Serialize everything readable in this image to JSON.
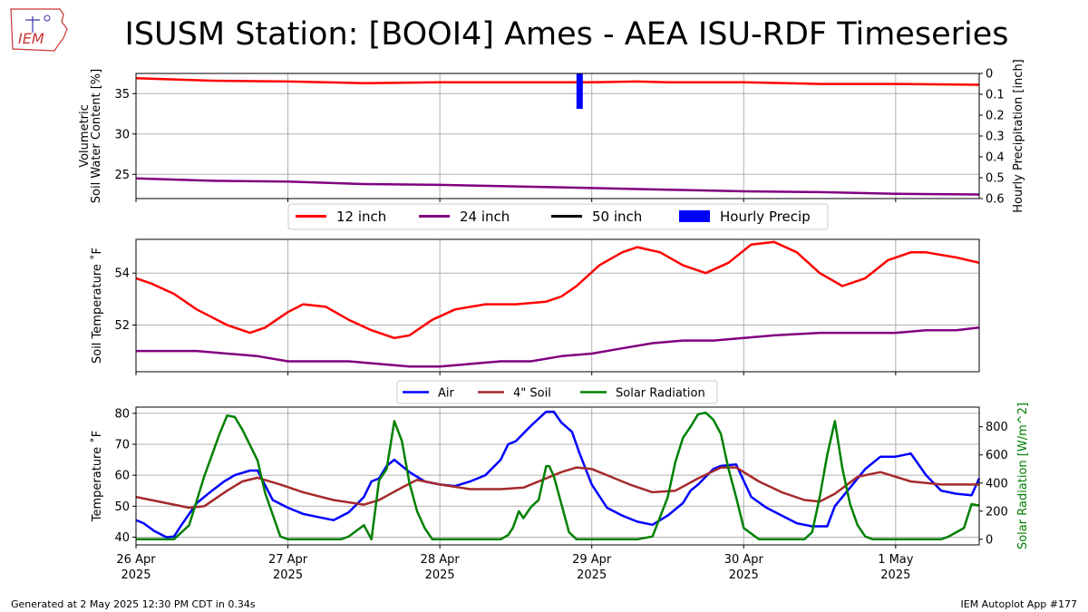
{
  "title": "ISUSM Station: [BOOI4] Ames - AEA ISU-RDF Timeseries",
  "logo_text": "IEM",
  "footer_left": "Generated at 2 May 2025 12:30 PM CDT in 0.34s",
  "footer_right": "IEM Autoplot App #177",
  "colors": {
    "red": "#ff0000",
    "purple": "#800080",
    "black": "#000000",
    "blue": "#0000ff",
    "brown": "#a52a2a",
    "green": "#008000",
    "grid": "#b0b0b0"
  },
  "x_ticks": [
    {
      "day": 0,
      "l1": "26 Apr",
      "l2": "2025"
    },
    {
      "day": 1,
      "l1": "27 Apr",
      "l2": "2025"
    },
    {
      "day": 2,
      "l1": "28 Apr",
      "l2": "2025"
    },
    {
      "day": 3,
      "l1": "29 Apr",
      "l2": "2025"
    },
    {
      "day": 4,
      "l1": "30 Apr",
      "l2": "2025"
    },
    {
      "day": 5,
      "l1": "1 May",
      "l2": "2025"
    }
  ],
  "x_range_days": [
    0,
    5.55
  ],
  "chart_data": [
    {
      "type": "line",
      "id": "soil_moisture",
      "ylabel": "Volumetric\nSoil Water Content [%]",
      "ylim": [
        22,
        37.5
      ],
      "yticks": [
        25,
        30,
        35
      ],
      "y2label": "Hourly Precipitation [inch]",
      "y2lim": [
        0,
        0.6
      ],
      "y2ticks": [
        0,
        0.1,
        0.2,
        0.3,
        0.4,
        0.5,
        0.6
      ],
      "y2inverted": true,
      "grid": true,
      "legend": {
        "placement": "below",
        "entries": [
          {
            "label": "12 inch",
            "color": "#ff0000",
            "kind": "line"
          },
          {
            "label": "24 inch",
            "color": "#800080",
            "kind": "line"
          },
          {
            "label": "50 inch",
            "color": "#000000",
            "kind": "line"
          },
          {
            "label": "Hourly Precip",
            "color": "#0000ff",
            "kind": "box"
          }
        ]
      },
      "series": [
        {
          "name": "12 inch",
          "color": "#ff0000",
          "x": [
            0,
            0.5,
            1.0,
            1.5,
            2.0,
            2.5,
            3.0,
            3.3,
            3.5,
            4.0,
            4.5,
            5.0,
            5.55
          ],
          "y": [
            36.9,
            36.6,
            36.5,
            36.3,
            36.4,
            36.4,
            36.4,
            36.5,
            36.4,
            36.4,
            36.2,
            36.2,
            36.1
          ]
        },
        {
          "name": "24 inch",
          "color": "#800080",
          "x": [
            0,
            0.5,
            1.0,
            1.5,
            2.0,
            2.5,
            3.0,
            3.5,
            4.0,
            4.5,
            5.0,
            5.55
          ],
          "y": [
            24.5,
            24.2,
            24.1,
            23.8,
            23.7,
            23.5,
            23.3,
            23.1,
            22.9,
            22.8,
            22.6,
            22.5
          ]
        },
        {
          "name": "Hourly Precip",
          "color": "#0000ff",
          "kind": "bar",
          "x": [
            2.92
          ],
          "y": [
            0.17
          ]
        }
      ]
    },
    {
      "type": "line",
      "id": "soil_temperature",
      "ylabel": "Soil Temperature ˚F",
      "ylim": [
        50.2,
        55.3
      ],
      "yticks": [
        52,
        54
      ],
      "grid": true,
      "series": [
        {
          "name": "12 inch",
          "color": "#ff0000",
          "x": [
            0,
            0.1,
            0.25,
            0.4,
            0.6,
            0.75,
            0.85,
            1.0,
            1.1,
            1.25,
            1.4,
            1.55,
            1.7,
            1.8,
            1.95,
            2.1,
            2.3,
            2.5,
            2.7,
            2.8,
            2.9,
            3.05,
            3.2,
            3.3,
            3.45,
            3.6,
            3.75,
            3.9,
            4.05,
            4.2,
            4.35,
            4.5,
            4.65,
            4.8,
            4.95,
            5.1,
            5.2,
            5.4,
            5.55
          ],
          "y": [
            53.8,
            53.6,
            53.2,
            52.6,
            52.0,
            51.7,
            51.9,
            52.5,
            52.8,
            52.7,
            52.2,
            51.8,
            51.5,
            51.6,
            52.2,
            52.6,
            52.8,
            52.8,
            52.9,
            53.1,
            53.5,
            54.3,
            54.8,
            55.0,
            54.8,
            54.3,
            54.0,
            54.4,
            55.1,
            55.2,
            54.8,
            54.0,
            53.5,
            53.8,
            54.5,
            54.8,
            54.8,
            54.6,
            54.4
          ]
        },
        {
          "name": "24 inch",
          "color": "#800080",
          "x": [
            0,
            0.2,
            0.4,
            0.6,
            0.8,
            1.0,
            1.2,
            1.4,
            1.6,
            1.8,
            2.0,
            2.2,
            2.4,
            2.6,
            2.8,
            3.0,
            3.2,
            3.4,
            3.6,
            3.8,
            4.0,
            4.2,
            4.5,
            4.8,
            5.0,
            5.2,
            5.4,
            5.55
          ],
          "y": [
            51.0,
            51.0,
            51.0,
            50.9,
            50.8,
            50.6,
            50.6,
            50.6,
            50.5,
            50.4,
            50.4,
            50.5,
            50.6,
            50.6,
            50.8,
            50.9,
            51.1,
            51.3,
            51.4,
            51.4,
            51.5,
            51.6,
            51.7,
            51.7,
            51.7,
            51.8,
            51.8,
            51.9
          ]
        }
      ]
    },
    {
      "type": "line",
      "id": "air_soil_solar",
      "ylabel": "Temperature ˚F",
      "ylim": [
        37.5,
        82
      ],
      "yticks": [
        40,
        50,
        60,
        70,
        80
      ],
      "y2label": "Solar Radiation [W/m^2]",
      "y2lim": [
        -40,
        940
      ],
      "y2ticks": [
        0,
        200,
        400,
        600,
        800
      ],
      "grid": true,
      "legend": {
        "placement": "top",
        "entries": [
          {
            "label": "Air",
            "color": "#0000ff",
            "kind": "line"
          },
          {
            "label": "4\" Soil",
            "color": "#a52a2a",
            "kind": "line"
          },
          {
            "label": "Solar Radiation",
            "color": "#008000",
            "kind": "line"
          }
        ]
      },
      "series": [
        {
          "name": "Air",
          "color": "#0000ff",
          "axis": "left",
          "x": [
            0,
            0.05,
            0.12,
            0.2,
            0.25,
            0.3,
            0.4,
            0.5,
            0.58,
            0.65,
            0.75,
            0.8,
            0.9,
            1.0,
            1.1,
            1.2,
            1.3,
            1.4,
            1.5,
            1.55,
            1.6,
            1.65,
            1.7,
            1.8,
            1.9,
            2.0,
            2.1,
            2.2,
            2.3,
            2.4,
            2.45,
            2.5,
            2.6,
            2.7,
            2.75,
            2.8,
            2.87,
            2.92,
            3.0,
            3.1,
            3.2,
            3.3,
            3.4,
            3.5,
            3.6,
            3.65,
            3.7,
            3.8,
            3.85,
            3.95,
            4.05,
            4.15,
            4.25,
            4.35,
            4.4,
            4.45,
            4.55,
            4.6,
            4.7,
            4.8,
            4.9,
            5.0,
            5.1,
            5.2,
            5.3,
            5.4,
            5.5,
            5.55
          ],
          "y": [
            45.5,
            44.5,
            42,
            40,
            40.2,
            44,
            51,
            55,
            58,
            60,
            61.5,
            61.5,
            52,
            49.5,
            47.5,
            46.5,
            45.5,
            48,
            53,
            58,
            59,
            63,
            65,
            61,
            58,
            57,
            56.5,
            58,
            60,
            65,
            70,
            71,
            76,
            80.5,
            80.5,
            77,
            74,
            67,
            57,
            49.5,
            47,
            45,
            44,
            47,
            51,
            55,
            57,
            62,
            63,
            63.5,
            53,
            49.5,
            47,
            44.5,
            44,
            43.5,
            43.5,
            50,
            56,
            62,
            66,
            66,
            67,
            60,
            55,
            54,
            53.5,
            59
          ]
        },
        {
          "name": "4\" Soil",
          "color": "#a52a2a",
          "axis": "left",
          "x": [
            0,
            0.2,
            0.35,
            0.45,
            0.6,
            0.7,
            0.8,
            0.95,
            1.1,
            1.3,
            1.5,
            1.6,
            1.75,
            1.85,
            2.0,
            2.2,
            2.4,
            2.55,
            2.7,
            2.8,
            2.9,
            3.0,
            3.1,
            3.25,
            3.4,
            3.55,
            3.7,
            3.85,
            3.95,
            4.1,
            4.25,
            4.4,
            4.5,
            4.6,
            4.75,
            4.9,
            5.1,
            5.3,
            5.55
          ],
          "y": [
            53,
            51,
            49.5,
            50,
            55,
            58,
            59.2,
            57,
            54.5,
            52,
            50.5,
            52,
            56,
            58.5,
            57,
            55.5,
            55.5,
            56,
            59,
            61,
            62.5,
            62,
            60,
            57,
            54.5,
            55,
            59,
            62.5,
            62.5,
            58,
            54.5,
            52,
            51.5,
            54,
            59.5,
            61,
            58,
            57,
            57
          ]
        },
        {
          "name": "Solar Radiation",
          "color": "#008000",
          "axis": "right",
          "x": [
            0,
            0.2,
            0.25,
            0.35,
            0.45,
            0.55,
            0.6,
            0.65,
            0.7,
            0.8,
            0.85,
            0.95,
            1.0,
            1.1,
            1.2,
            1.25,
            1.35,
            1.4,
            1.5,
            1.55,
            1.6,
            1.65,
            1.7,
            1.75,
            1.8,
            1.85,
            1.9,
            1.95,
            2.0,
            2.1,
            2.2,
            2.3,
            2.4,
            2.45,
            2.48,
            2.52,
            2.55,
            2.6,
            2.65,
            2.7,
            2.72,
            2.75,
            2.8,
            2.85,
            2.9,
            3.0,
            3.1,
            3.2,
            3.3,
            3.4,
            3.5,
            3.55,
            3.6,
            3.65,
            3.7,
            3.75,
            3.8,
            3.85,
            3.9,
            3.95,
            4.0,
            4.1,
            4.2,
            4.3,
            4.4,
            4.45,
            4.5,
            4.55,
            4.6,
            4.65,
            4.7,
            4.75,
            4.8,
            4.85,
            4.9,
            5.0,
            5.1,
            5.2,
            5.3,
            5.35,
            5.4,
            5.45,
            5.5,
            5.55
          ],
          "y": [
            0,
            0,
            0,
            100,
            450,
            750,
            880,
            870,
            780,
            560,
            330,
            20,
            0,
            0,
            0,
            0,
            0,
            20,
            100,
            0,
            420,
            500,
            840,
            700,
            400,
            200,
            80,
            0,
            0,
            0,
            0,
            0,
            0,
            30,
            80,
            200,
            150,
            230,
            280,
            520,
            520,
            450,
            250,
            50,
            0,
            0,
            0,
            0,
            0,
            20,
            300,
            550,
            720,
            800,
            890,
            900,
            850,
            750,
            500,
            300,
            80,
            0,
            0,
            0,
            0,
            50,
            300,
            600,
            840,
            500,
            250,
            100,
            20,
            0,
            0,
            0,
            0,
            0,
            0,
            20,
            50,
            80,
            250,
            240
          ]
        }
      ]
    }
  ]
}
